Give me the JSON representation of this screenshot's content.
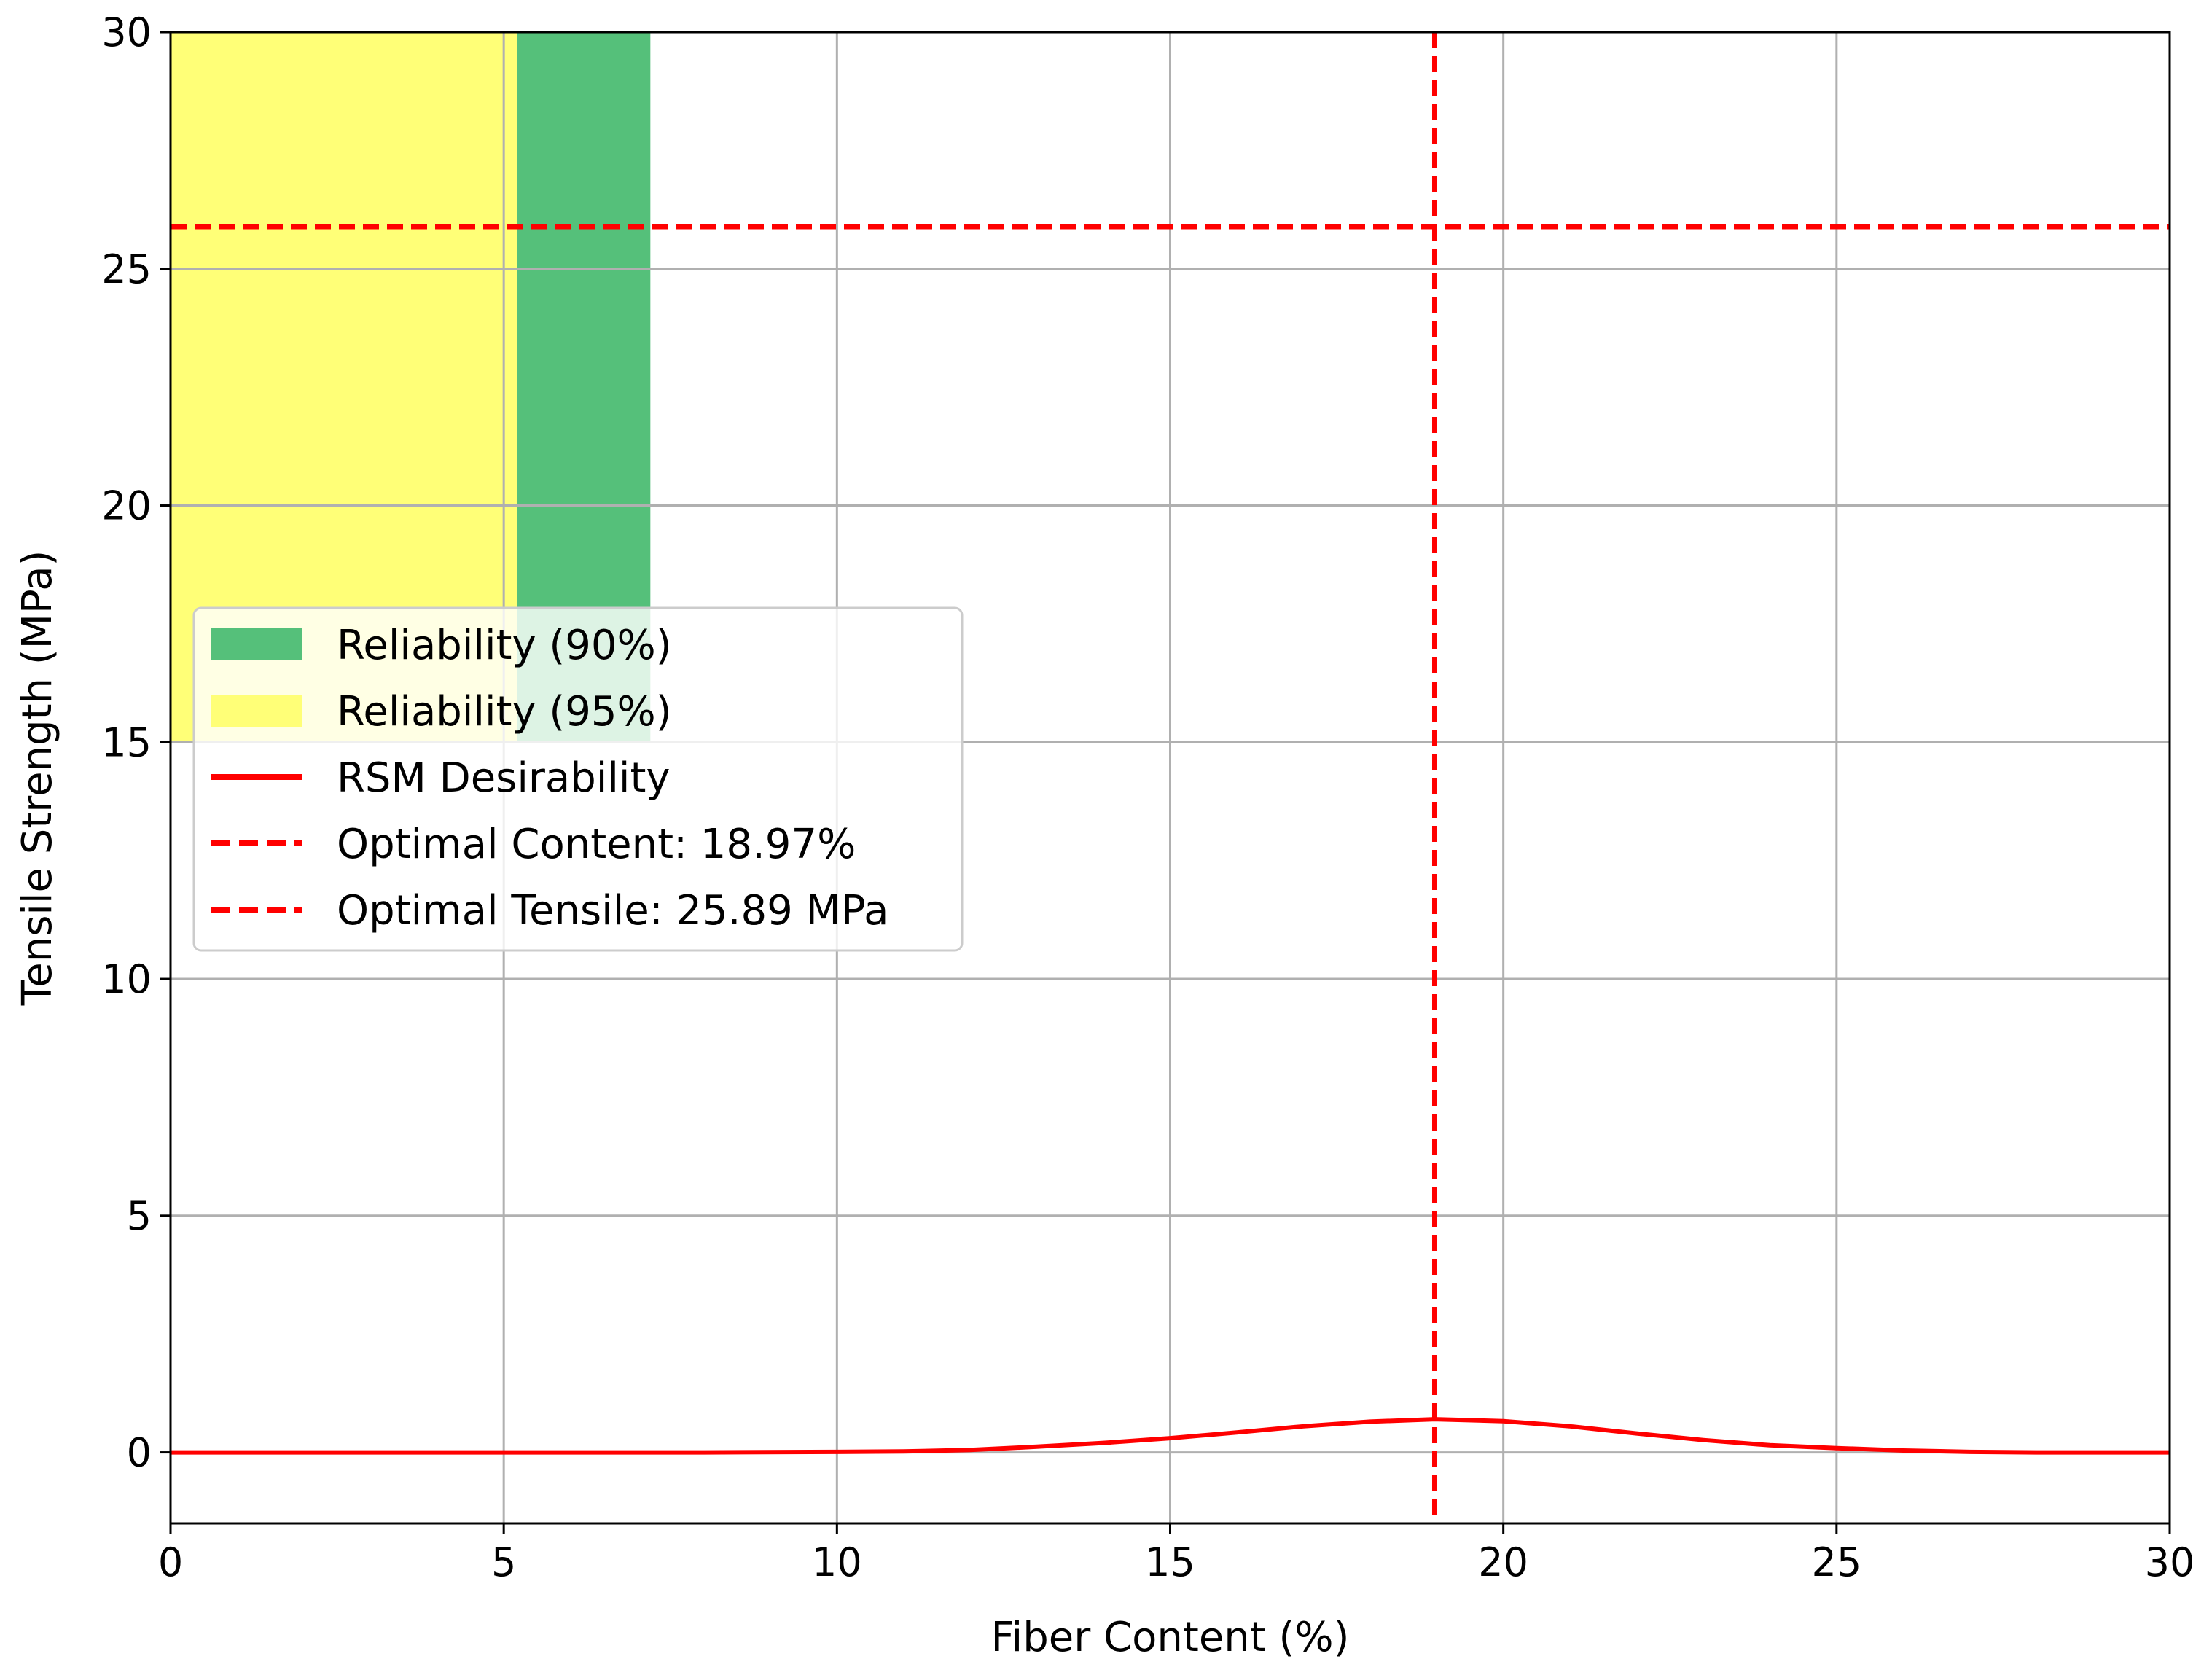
{
  "chart_data": {
    "type": "line",
    "xlabel": "Fiber Content (%)",
    "ylabel": "Tensile Strength (MPa)",
    "xlim": [
      0,
      30
    ],
    "ylim": [
      -1.5,
      30
    ],
    "xticks": [
      0,
      5,
      10,
      15,
      20,
      25,
      30
    ],
    "yticks": [
      0,
      5,
      10,
      15,
      20,
      25,
      30
    ],
    "grid": true,
    "legend_placement": "center-left",
    "regions": [
      {
        "name": "Reliability (90%)",
        "x_range": [
          5.2,
          7.2
        ],
        "y_range": [
          15,
          30
        ],
        "color": "#55c07a"
      },
      {
        "name": "Reliability (95%)",
        "x_range": [
          0,
          5.2
        ],
        "y_range": [
          15,
          30
        ],
        "color": "#ffff77"
      }
    ],
    "series": [
      {
        "name": "RSM Desirability",
        "color": "#ff0000",
        "x": [
          0,
          2,
          4,
          6,
          8,
          10,
          11,
          12,
          13,
          14,
          15,
          16,
          17,
          18,
          18.97,
          20,
          21,
          22,
          23,
          24,
          25,
          26,
          27,
          28,
          29,
          30
        ],
        "y": [
          0,
          0,
          0,
          0,
          0,
          0.01,
          0.02,
          0.05,
          0.12,
          0.2,
          0.3,
          0.42,
          0.55,
          0.65,
          0.7,
          0.66,
          0.55,
          0.4,
          0.26,
          0.15,
          0.09,
          0.04,
          0.01,
          0,
          0,
          0
        ]
      }
    ],
    "reference_lines": [
      {
        "name": "Optimal Content: 18.97%",
        "orientation": "vertical",
        "value": 18.97,
        "color": "#ff0000",
        "style": "dashed"
      },
      {
        "name": "Optimal Tensile: 25.89 MPa",
        "orientation": "horizontal",
        "value": 25.89,
        "color": "#ff0000",
        "style": "dashed"
      }
    ]
  }
}
